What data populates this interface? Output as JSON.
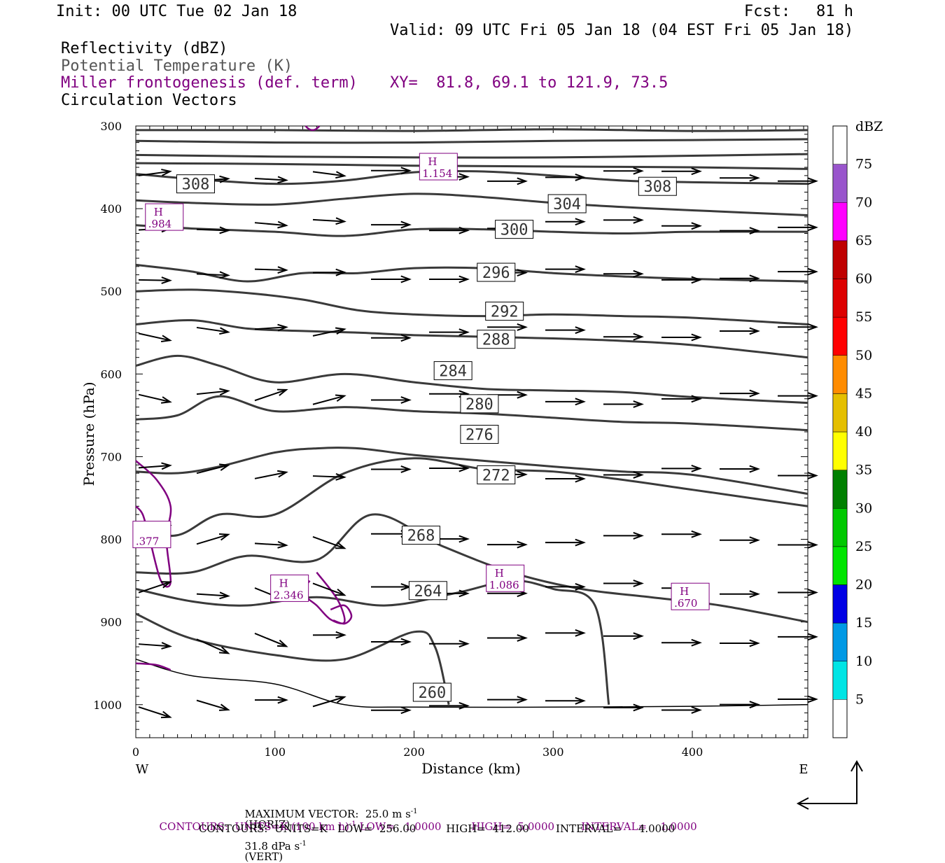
{
  "header": {
    "init": "Init: 00 UTC Tue 02 Jan 18",
    "fcst_label": "Fcst:",
    "fcst_value": "81 h",
    "valid": "Valid: 09 UTC Fri 05 Jan 18 (04 EST Fri 05 Jan 18)",
    "fields": {
      "reflectivity": "Reflectivity (dBZ)",
      "theta": "Potential Temperature (K)",
      "frontogenesis": "Miller frontogenesis (def. term)",
      "circulation": "Circulation Vectors"
    },
    "xy": "XY=  81.8, 69.1 to 121.9, 73.5"
  },
  "colors": {
    "theta_contour": "#3a3a3a",
    "frontogenesis": "#800080",
    "vector": "#000000"
  },
  "chart_data": {
    "type": "line",
    "xlabel": "Distance (km)",
    "ylabel": "Pressure (hPa)",
    "xlim": [
      0,
      483
    ],
    "ylim": [
      1040,
      300
    ],
    "x_ticks": [
      0,
      100,
      200,
      300,
      400
    ],
    "y_ticks": [
      300,
      400,
      500,
      600,
      700,
      800,
      900,
      1000
    ],
    "x_end_labels": {
      "left": "W",
      "right": "E"
    },
    "theta_contours": [
      {
        "label": "308",
        "x": [
          0,
          40,
          100,
          150,
          200,
          250,
          300,
          350,
          400,
          483
        ],
        "p": [
          358,
          364,
          370,
          366,
          356,
          355,
          360,
          366,
          368,
          370
        ]
      },
      {
        "label": "304",
        "x": [
          0,
          40,
          100,
          150,
          200,
          250,
          300,
          350,
          400,
          483
        ],
        "p": [
          390,
          393,
          395,
          388,
          382,
          386,
          393,
          398,
          402,
          408
        ]
      },
      {
        "label": "300",
        "x": [
          0,
          40,
          100,
          150,
          200,
          250,
          300,
          350,
          400,
          483
        ],
        "p": [
          420,
          424,
          428,
          433,
          425,
          425,
          428,
          430,
          428,
          428
        ]
      },
      {
        "label": "296",
        "x": [
          0,
          40,
          80,
          120,
          160,
          200,
          250,
          300,
          350,
          400,
          483
        ],
        "p": [
          468,
          476,
          488,
          478,
          478,
          472,
          472,
          478,
          482,
          485,
          488
        ]
      },
      {
        "label": "292",
        "x": [
          0,
          40,
          80,
          120,
          160,
          200,
          250,
          300,
          350,
          400,
          483
        ],
        "p": [
          500,
          498,
          502,
          510,
          523,
          528,
          530,
          528,
          530,
          532,
          540
        ]
      },
      {
        "label": "288",
        "x": [
          0,
          40,
          80,
          120,
          160,
          200,
          250,
          300,
          350,
          400,
          483
        ],
        "p": [
          540,
          535,
          545,
          548,
          550,
          553,
          555,
          557,
          560,
          565,
          580
        ]
      },
      {
        "label": "284",
        "x": [
          0,
          30,
          60,
          100,
          150,
          200,
          250,
          300,
          350,
          400,
          483
        ],
        "p": [
          590,
          578,
          590,
          610,
          600,
          610,
          618,
          620,
          622,
          628,
          635
        ]
      },
      {
        "label": "280",
        "x": [
          0,
          30,
          60,
          100,
          150,
          200,
          250,
          300,
          350,
          400,
          483
        ],
        "p": [
          655,
          650,
          627,
          645,
          640,
          645,
          648,
          653,
          658,
          660,
          668
        ]
      },
      {
        "label": "276",
        "x": [
          0,
          30,
          60,
          100,
          130,
          160,
          200,
          250,
          300,
          350,
          400,
          483
        ],
        "p": [
          718,
          720,
          712,
          695,
          690,
          690,
          698,
          705,
          712,
          718,
          722,
          745
        ]
      },
      {
        "label": "272",
        "x": [
          0,
          30,
          60,
          100,
          150,
          200,
          250,
          300,
          350,
          400,
          483
        ],
        "p": [
          790,
          795,
          770,
          770,
          720,
          702,
          715,
          718,
          728,
          740,
          760
        ]
      },
      {
        "label": "268",
        "x": [
          0,
          40,
          80,
          130,
          170,
          220,
          270,
          320,
          370,
          420,
          483
        ],
        "p": [
          840,
          840,
          820,
          825,
          770,
          808,
          840,
          860,
          870,
          880,
          900
        ]
      },
      {
        "label": "264",
        "x": [
          0,
          40,
          80,
          130,
          180,
          230,
          270,
          300,
          330,
          340
        ],
        "p": [
          860,
          875,
          880,
          870,
          880,
          865,
          850,
          860,
          880,
          1000
        ]
      },
      {
        "label": "260",
        "x": [
          0,
          40,
          100,
          150,
          200,
          215,
          225
        ],
        "p": [
          890,
          920,
          940,
          945,
          912,
          930,
          1000
        ]
      }
    ],
    "frontogenesis_maxima": [
      {
        "label": "H",
        "value": "1.154"
      },
      {
        "label": "H",
        "value": ".984"
      },
      {
        "label": "H",
        "value": "2.346"
      },
      {
        "label": "H",
        "value": "1.086"
      },
      {
        "label": "H",
        "value": ".670"
      },
      {
        "label": "",
        "value": ".377"
      }
    ],
    "colorbar": {
      "unit": "dBZ",
      "levels": [
        "5",
        "10",
        "15",
        "20",
        "25",
        "30",
        "35",
        "40",
        "45",
        "50",
        "55",
        "60",
        "65",
        "70",
        "75"
      ],
      "colors": [
        "#00e5e5",
        "#0099e5",
        "#0000e5",
        "#00e500",
        "#00c800",
        "#008000",
        "#ffff00",
        "#e5bf00",
        "#ff8c00",
        "#ff0000",
        "#dd0000",
        "#bf0000",
        "#ff00ff",
        "#9955cc"
      ]
    }
  },
  "footer": {
    "max_vector": "MAXIMUM VECTOR:  25.0 m s",
    "max_vector_horiz": "(HORIZ)",
    "max_vector_vert": "31.8 dPa s",
    "max_vector_vert_suffix": "(VERT)",
    "contours_purple": "CONTOURS:  UNITS=K (100 km h)",
    "contours_purple_rest": " LOW=   1.0000         HIGH=  5.0000        INTERVAL=    1.0000",
    "contours_black": "CONTOURS:  UNITS=K   LOW=  256.00         HIGH=  412.00        INTERVAL=     4.0000"
  }
}
